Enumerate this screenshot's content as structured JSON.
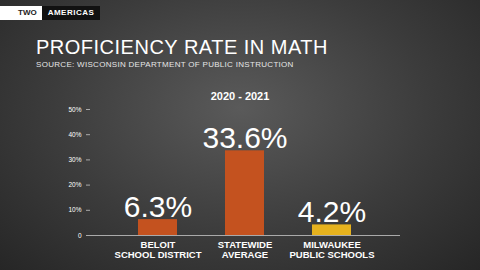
{
  "chart_data": {
    "type": "bar",
    "title": "PROFICIENCY RATE IN MATH",
    "subtitle": "SOURCE: WISCONSIN DEPARTMENT OF PUBLIC INSTRUCTION",
    "annotations": [
      "TWO AMERICAS",
      "2020 - 2021"
    ],
    "categories": [
      "BELOIT\nSCHOOL DISTRICT",
      "STATEWIDE\nAVERAGE",
      "MILWAUKEE\nPUBLIC SCHOOLS"
    ],
    "values": [
      6.3,
      33.6,
      4.2
    ],
    "value_labels": [
      "6.3%",
      "33.6%",
      "4.2%"
    ],
    "colors": [
      "#c4521f",
      "#c4521f",
      "#e6b21e"
    ],
    "ylim": [
      0,
      50
    ],
    "yticks": [
      0,
      {
        "value": 10,
        "label": "10%"
      },
      {
        "value": 20,
        "label": "20%"
      },
      {
        "value": 30,
        "label": "30%"
      },
      {
        "value": 40,
        "label": "40%"
      },
      {
        "value": 50,
        "label": "50%"
      }
    ],
    "grid": false,
    "data_labels": true
  }
}
